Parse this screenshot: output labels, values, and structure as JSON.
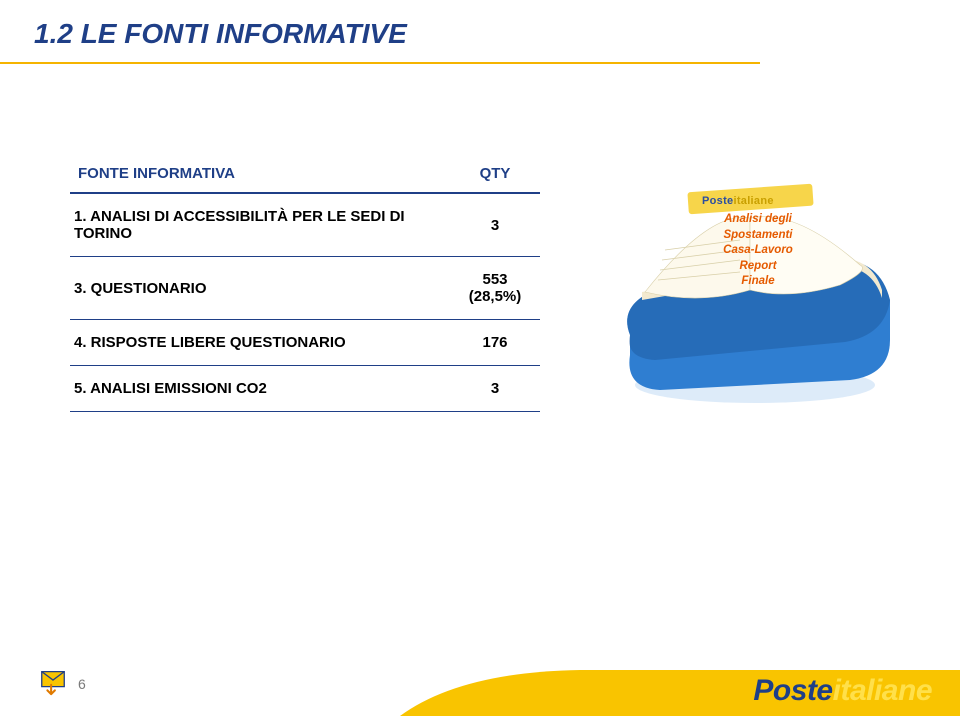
{
  "colors": {
    "title": "#1f3f87",
    "top_line": "#f5b400",
    "table_header": "#1f3f87",
    "table_rule": "#1f3f87",
    "table_text": "#000000",
    "book_base": "#2f7ed1",
    "book_base_dark": "#1e5aa0",
    "book_pages": "#f2e9cf",
    "book_label": "#f7d54a",
    "book_label_text": "#2b4ea0",
    "book_sub_text": "#e55a00",
    "footer_yellow": "#f9c400",
    "logo_blue": "#1f3f87",
    "logo_yellow": "#ffe04a",
    "envelope_fill": "#f9c400",
    "envelope_stroke": "#1f3f87"
  },
  "title": "1.2 LE FONTI INFORMATIVE",
  "table": {
    "columns": [
      "FONTE INFORMATIVA",
      "QTY"
    ],
    "rows": [
      {
        "label": "1. ANALISI DI ACCESSIBILITÀ PER LE SEDI DI TORINO",
        "qty": "3"
      },
      {
        "label": "3. QUESTIONARIO",
        "qty": "553\n(28,5%)"
      },
      {
        "label": "4. RISPOSTE LIBERE QUESTIONARIO",
        "qty": "176"
      },
      {
        "label": "5. ANALISI EMISSIONI CO2",
        "qty": "3"
      }
    ]
  },
  "book": {
    "label_brand_blue": "Poste",
    "label_brand_yellow": "italiane",
    "subtitle": "Analisi degli\nSpostamenti\nCasa-Lavoro\nReport\nFinale"
  },
  "footer": {
    "page": "6",
    "logo_blue": "Poste",
    "logo_yellow": "italiane"
  }
}
